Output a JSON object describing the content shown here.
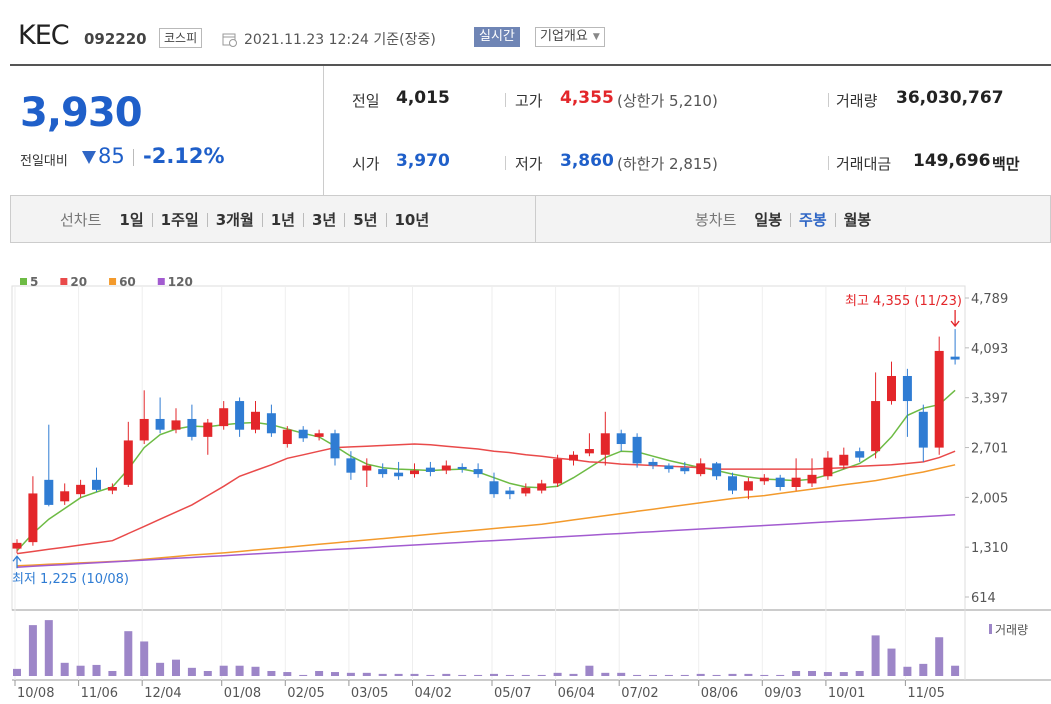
{
  "header": {
    "name": "KEC",
    "code": "092220",
    "market": "코스피",
    "datetime": "2021.11.23 12:24 기준(장중)",
    "realtime": "실시간",
    "company_info": "기업개요"
  },
  "quote": {
    "price": "3,930",
    "change_label": "전일대비",
    "change": "85",
    "change_pct": "-2.12%",
    "items": [
      {
        "label": "전일",
        "value": "4,015"
      },
      {
        "label": "고가",
        "value": "4,355",
        "note": "(상한가 5,210)"
      },
      {
        "label": "거래량",
        "value": "36,030,767"
      },
      {
        "label": "시가",
        "value": "3,970"
      },
      {
        "label": "저가",
        "value": "3,860",
        "note": "(하한가 2,815)"
      },
      {
        "label": "거래대금",
        "value": "149,696",
        "unit": "백만"
      }
    ]
  },
  "tabs": {
    "line_label": "선차트",
    "line_periods": [
      "1일",
      "1주일",
      "3개월",
      "1년",
      "3년",
      "5년",
      "10년"
    ],
    "candle_label": "봉차트",
    "candle_periods": [
      "일봉",
      "주봉",
      "월봉"
    ],
    "active": "주봉"
  },
  "chart_data": {
    "type": "candlestick",
    "categories": [
      "10/08",
      null,
      null,
      null,
      "11/06",
      null,
      null,
      null,
      "12/04",
      null,
      null,
      null,
      null,
      "01/08",
      null,
      null,
      null,
      "02/05",
      null,
      null,
      null,
      "03/05",
      null,
      null,
      null,
      "04/02",
      null,
      null,
      null,
      null,
      "05/07",
      null,
      null,
      null,
      "06/04",
      null,
      null,
      null,
      "07/02",
      null,
      null,
      null,
      null,
      "08/06",
      null,
      null,
      null,
      "09/03",
      null,
      null,
      null,
      "10/01",
      null,
      null,
      null,
      null,
      "11/05",
      null,
      null,
      null
    ],
    "open": [
      1290,
      1380,
      2250,
      1950,
      2050,
      2250,
      2100,
      2180,
      2800,
      3100,
      2950,
      3100,
      2850,
      3000,
      3350,
      2950,
      3180,
      2750,
      2950,
      2850,
      2900,
      2550,
      2380,
      2400,
      2350,
      2330,
      2420,
      2380,
      2430,
      2400,
      2230,
      2100,
      2060,
      2100,
      2200,
      2520,
      2620,
      2600,
      2900,
      2850,
      2500,
      2450,
      2420,
      2330,
      2480,
      2300,
      2100,
      2230,
      2280,
      2150,
      2200,
      2300,
      2450,
      2650,
      2650,
      3350,
      3700,
      3200,
      2700,
      3970
    ],
    "high": [
      1420,
      2300,
      3020,
      2200,
      2250,
      2420,
      2200,
      3060,
      3500,
      3400,
      3250,
      3300,
      3100,
      3350,
      3400,
      3350,
      3300,
      3000,
      3000,
      2950,
      2950,
      2650,
      2550,
      2480,
      2500,
      2480,
      2500,
      2520,
      2480,
      2480,
      2350,
      2150,
      2200,
      2250,
      2600,
      2650,
      2900,
      3200,
      2950,
      2900,
      2550,
      2480,
      2500,
      2550,
      2500,
      2350,
      2280,
      2330,
      2320,
      2550,
      2550,
      2650,
      2700,
      2700,
      3750,
      3900,
      3800,
      3300,
      4250,
      4355
    ],
    "low": [
      1225,
      1330,
      1880,
      1900,
      2000,
      2080,
      2050,
      2150,
      2750,
      2900,
      2900,
      2800,
      2600,
      2950,
      2850,
      2900,
      2850,
      2700,
      2780,
      2800,
      2450,
      2250,
      2150,
      2280,
      2250,
      2280,
      2300,
      2330,
      2350,
      2280,
      2000,
      1980,
      2020,
      2060,
      2150,
      2450,
      2580,
      2450,
      2650,
      2420,
      2400,
      2350,
      2330,
      2300,
      2250,
      2050,
      1980,
      2180,
      2100,
      2100,
      2150,
      2250,
      2400,
      2500,
      2550,
      3300,
      2850,
      2500,
      2600,
      3860
    ],
    "close": [
      1370,
      2060,
      1900,
      2090,
      2180,
      2110,
      2150,
      2800,
      3100,
      2950,
      3080,
      2850,
      3050,
      3250,
      2950,
      3200,
      2900,
      2950,
      2830,
      2900,
      2550,
      2350,
      2450,
      2330,
      2300,
      2380,
      2360,
      2450,
      2400,
      2330,
      2050,
      2050,
      2140,
      2200,
      2540,
      2600,
      2680,
      2900,
      2750,
      2480,
      2450,
      2400,
      2370,
      2480,
      2300,
      2100,
      2230,
      2280,
      2150,
      2280,
      2320,
      2560,
      2600,
      2560,
      3350,
      3700,
      3350,
      2700,
      4050,
      3930
    ],
    "up_color": "#e3262a",
    "down_color": "#2f7cd3",
    "ylim": [
      614,
      4789
    ],
    "yticks": [
      614,
      {
        "value": 1310,
        "label": "1,310"
      },
      {
        "value": 2005,
        "label": "2,005"
      },
      {
        "value": 2701,
        "label": "2,701"
      },
      {
        "value": 3397,
        "label": "3,397"
      },
      {
        "value": 4093,
        "label": "4,093"
      },
      {
        "value": 4789,
        "label": "4,789"
      }
    ],
    "series": [
      {
        "name": "5",
        "color": "#6dbb44",
        "values": [
          1260,
          1500,
          1700,
          1850,
          2000,
          2080,
          2150,
          2400,
          2700,
          2880,
          2960,
          3000,
          2990,
          3020,
          3040,
          3050,
          3020,
          2960,
          2900,
          2850,
          2720,
          2580,
          2470,
          2420,
          2400,
          2390,
          2380,
          2390,
          2400,
          2360,
          2280,
          2200,
          2150,
          2140,
          2160,
          2280,
          2420,
          2560,
          2650,
          2640,
          2580,
          2520,
          2470,
          2420,
          2380,
          2330,
          2290,
          2260,
          2250,
          2240,
          2260,
          2320,
          2400,
          2480,
          2620,
          2850,
          3150,
          3250,
          3300,
          3500
        ]
      },
      {
        "name": "20",
        "color": "#e94a4a",
        "values": [
          1220,
          1250,
          1280,
          1310,
          1340,
          1370,
          1400,
          1500,
          1600,
          1700,
          1800,
          1900,
          2030,
          2160,
          2300,
          2380,
          2460,
          2550,
          2600,
          2650,
          2700,
          2710,
          2720,
          2730,
          2740,
          2750,
          2740,
          2720,
          2700,
          2680,
          2650,
          2630,
          2600,
          2580,
          2550,
          2530,
          2500,
          2490,
          2470,
          2460,
          2450,
          2440,
          2430,
          2420,
          2400,
          2400,
          2400,
          2400,
          2400,
          2400,
          2400,
          2410,
          2420,
          2440,
          2450,
          2460,
          2480,
          2500,
          2560,
          2650
        ]
      },
      {
        "name": "60",
        "color": "#f39a2c",
        "values": [
          1050,
          1060,
          1070,
          1080,
          1090,
          1100,
          1110,
          1120,
          1140,
          1160,
          1180,
          1200,
          1215,
          1230,
          1250,
          1270,
          1290,
          1310,
          1330,
          1350,
          1370,
          1390,
          1410,
          1430,
          1450,
          1470,
          1490,
          1510,
          1530,
          1550,
          1570,
          1590,
          1610,
          1630,
          1660,
          1690,
          1720,
          1750,
          1780,
          1810,
          1840,
          1870,
          1900,
          1930,
          1960,
          1990,
          2010,
          2030,
          2060,
          2090,
          2120,
          2150,
          2180,
          2210,
          2240,
          2280,
          2320,
          2360,
          2410,
          2460
        ]
      },
      {
        "name": "120",
        "color": "#a25bd0",
        "values": [
          1030,
          1042,
          1055,
          1067,
          1080,
          1092,
          1104,
          1117,
          1129,
          1142,
          1154,
          1166,
          1179,
          1191,
          1204,
          1216,
          1228,
          1241,
          1253,
          1266,
          1278,
          1290,
          1303,
          1315,
          1328,
          1340,
          1352,
          1365,
          1377,
          1390,
          1402,
          1414,
          1427,
          1439,
          1452,
          1464,
          1476,
          1489,
          1501,
          1514,
          1526,
          1538,
          1551,
          1563,
          1576,
          1588,
          1600,
          1613,
          1625,
          1638,
          1650,
          1662,
          1675,
          1687,
          1700,
          1712,
          1724,
          1737,
          1749,
          1762
        ]
      }
    ],
    "volume": {
      "label": "거래량",
      "color": "#9d86c8",
      "ylim": [
        0,
        220000000
      ],
      "values": [
        27000000,
        193000000,
        212000000,
        50000000,
        39000000,
        42000000,
        19000000,
        170000000,
        131000000,
        50000000,
        62000000,
        31000000,
        19000000,
        39000000,
        39000000,
        35000000,
        19000000,
        15000000,
        4000000,
        19000000,
        15000000,
        12000000,
        12000000,
        8000000,
        8000000,
        8000000,
        4000000,
        8000000,
        4000000,
        4000000,
        8000000,
        4000000,
        4000000,
        4000000,
        12000000,
        8000000,
        39000000,
        12000000,
        12000000,
        4000000,
        4000000,
        4000000,
        4000000,
        8000000,
        4000000,
        8000000,
        8000000,
        4000000,
        4000000,
        19000000,
        19000000,
        15000000,
        15000000,
        19000000,
        154000000,
        104000000,
        35000000,
        46000000,
        147000000,
        39000000
      ]
    },
    "annotations": [
      {
        "text": "최고 4,355 (11/23)",
        "color": "#e3262a"
      },
      {
        "text": "최저 1,225 (10/08)",
        "color": "#2f7cd3"
      }
    ]
  }
}
